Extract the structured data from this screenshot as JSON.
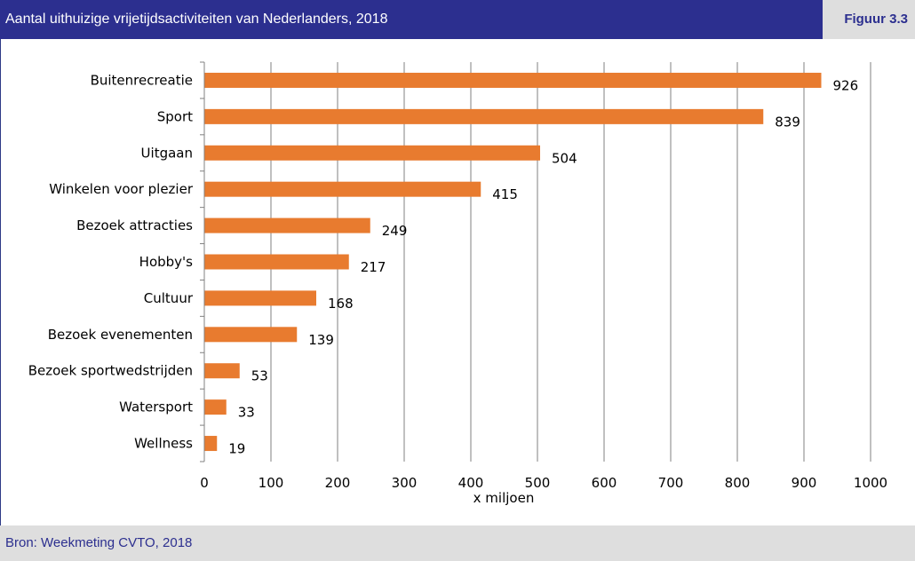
{
  "header": {
    "title": "Aantal uithuizige vrijetijdsactiviteiten van Nederlanders, 2018",
    "figure_label": "Figuur 3.3"
  },
  "footer": {
    "source": "Bron: Weekmeting CVTO, 2018"
  },
  "colors": {
    "bar": "#e87b2f",
    "header_bg": "#2c2f8f",
    "footer_bg": "#dedede",
    "grid": "#808080"
  },
  "chart_data": {
    "type": "bar",
    "orientation": "horizontal",
    "categories": [
      "Buitenrecreatie",
      "Sport",
      "Uitgaan",
      "Winkelen voor plezier",
      "Bezoek attracties",
      "Hobby's",
      "Cultuur",
      "Bezoek evenementen",
      "Bezoek sportwedstrijden",
      "Watersport",
      "Wellness"
    ],
    "values": [
      926,
      839,
      504,
      415,
      249,
      217,
      168,
      139,
      53,
      33,
      19
    ],
    "data_labels": [
      "926",
      "839",
      "504",
      "415",
      "249",
      "217",
      "168",
      "139",
      "53",
      "33",
      "19"
    ],
    "xlabel": "x miljoen",
    "ylabel": "",
    "xlim": [
      0,
      1000
    ],
    "x_ticks": [
      0,
      100,
      200,
      300,
      400,
      500,
      600,
      700,
      800,
      900,
      1000
    ],
    "x_tick_labels": [
      "0",
      "100",
      "200",
      "300",
      "400",
      "500",
      "600",
      "700",
      "800",
      "900",
      "1000"
    ],
    "grid": true,
    "legend": "none"
  }
}
